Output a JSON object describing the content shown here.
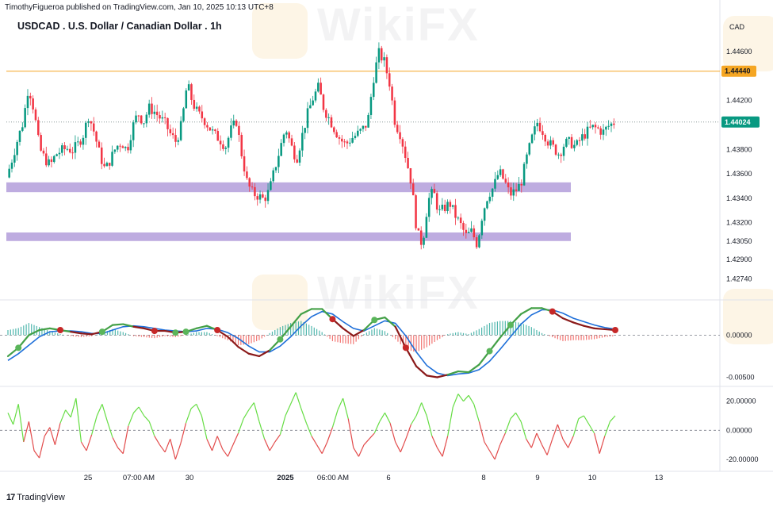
{
  "header": {
    "published": "TimothyFigueroa published on TradingView.com, Jan 10, 2025 10:13 UTC+8",
    "title": "USDCAD . U.S. Dollar / Canadian Dollar . 1h",
    "currency": "CAD"
  },
  "watermark": {
    "text": "WikiFX"
  },
  "footer": {
    "brand": "TradingView",
    "logo": "17"
  },
  "colors": {
    "up": "#089981",
    "down": "#f23645",
    "resistance": "#f5a623",
    "zone": "#b39ddb",
    "macd_line": "#43a047",
    "signal_line": "#1e6fd9",
    "macd_dark": "#8b1a1a",
    "osc_up": "#66dd44",
    "osc_down": "#e24b4b"
  },
  "chart_data": [
    {
      "type": "candlestick",
      "title": "USDCAD . U.S. Dollar / Canadian Dollar . 1h",
      "ylabel": "CAD",
      "price_axis_ticks": [
        "1.44600",
        "1.44200",
        "1.43800",
        "1.43600",
        "1.43400",
        "1.43200",
        "1.43050",
        "1.42900",
        "1.42740"
      ],
      "tick_values": [
        1.446,
        1.442,
        1.438,
        1.436,
        1.434,
        1.432,
        1.4305,
        1.429,
        1.4274
      ],
      "ylim": [
        1.4262,
        1.4475
      ],
      "price_path": [
        1.4357,
        1.4372,
        1.4388,
        1.4402,
        1.4432,
        1.4412,
        1.4381,
        1.4372,
        1.4367,
        1.4376,
        1.4379,
        1.4381,
        1.4379,
        1.4384,
        1.4392,
        1.4408,
        1.4394,
        1.4376,
        1.4363,
        1.4372,
        1.4382,
        1.4386,
        1.4379,
        1.4398,
        1.441,
        1.4402,
        1.4414,
        1.4411,
        1.4406,
        1.4401,
        1.4392,
        1.4386,
        1.4401,
        1.4434,
        1.4418,
        1.4409,
        1.4405,
        1.4398,
        1.4392,
        1.4388,
        1.4382,
        1.4396,
        1.4403,
        1.4375,
        1.4352,
        1.4344,
        1.4342,
        1.4339,
        1.4346,
        1.4364,
        1.4381,
        1.4398,
        1.4383,
        1.4372,
        1.4391,
        1.4409,
        1.4422,
        1.4431,
        1.4413,
        1.4405,
        1.4396,
        1.4388,
        1.4384,
        1.4389,
        1.4392,
        1.4396,
        1.4402,
        1.4437,
        1.4459,
        1.4452,
        1.4434,
        1.4402,
        1.4392,
        1.4373,
        1.4352,
        1.4312,
        1.4302,
        1.4338,
        1.4346,
        1.4328,
        1.4332,
        1.4336,
        1.4326,
        1.4318,
        1.4309,
        1.4313,
        1.4302,
        1.4328,
        1.4343,
        1.4349,
        1.4362,
        1.4354,
        1.4343,
        1.4346,
        1.4352,
        1.4372,
        1.4389,
        1.4402,
        1.4395,
        1.4386,
        1.4381,
        1.4376,
        1.4385,
        1.4386,
        1.4382,
        1.4389,
        1.4394,
        1.4398,
        1.4397,
        1.4394,
        1.4399,
        1.4402
      ],
      "resistance_level": 1.4444,
      "resistance_label": "1.44440",
      "last_price": 1.44024,
      "last_price_label": "1.44024",
      "support_zones": [
        {
          "low": 1.4345,
          "high": 1.4353
        },
        {
          "low": 1.4305,
          "high": 1.4312
        }
      ],
      "x_axis_labels": [
        "25",
        "07:00 AM",
        "30",
        "2025",
        "06:00 AM",
        "6",
        "8",
        "9",
        "10",
        "13"
      ]
    },
    {
      "type": "line",
      "name": "MACD",
      "tick_labels": [
        "0.00000",
        "-0.00500"
      ],
      "tick_values": [
        0,
        -0.005
      ],
      "ylim": [
        -0.0058,
        0.0038
      ],
      "zero_line": true,
      "macd_path": [
        -0.0025,
        -0.0015,
        0.0,
        0.0006,
        0.0008,
        0.0006,
        0.0004,
        0.0002,
        0.0001,
        0.0004,
        0.0012,
        0.0013,
        0.001,
        0.0008,
        0.0005,
        0.0005,
        0.0003,
        0.0004,
        0.0008,
        0.0011,
        0.0006,
        -0.0002,
        -0.0014,
        -0.0022,
        -0.0025,
        -0.0018,
        -0.0005,
        0.001,
        0.0025,
        0.0031,
        0.0031,
        0.0019,
        0.0008,
        -0.0001,
        0.0006,
        0.0018,
        0.0021,
        0.001,
        -0.0015,
        -0.0037,
        -0.0048,
        -0.005,
        -0.0047,
        -0.0043,
        -0.0044,
        -0.0035,
        -0.0019,
        -0.0003,
        0.0012,
        0.0025,
        0.0032,
        0.0032,
        0.0028,
        0.002,
        0.0015,
        0.0011,
        0.0008,
        0.0007,
        0.0006
      ],
      "signal_path": [
        -0.003,
        -0.0022,
        -0.0012,
        -0.0002,
        0.0004,
        0.0005,
        0.0005,
        0.0004,
        0.0002,
        0.0002,
        0.0006,
        0.001,
        0.0011,
        0.001,
        0.0008,
        0.0006,
        0.0005,
        0.0004,
        0.0005,
        0.0008,
        0.0007,
        0.0003,
        -0.0004,
        -0.0013,
        -0.002,
        -0.002,
        -0.0013,
        -0.0002,
        0.0011,
        0.0022,
        0.0028,
        0.0025,
        0.0016,
        0.0008,
        0.0005,
        0.0011,
        0.0017,
        0.0014,
        -0.0001,
        -0.002,
        -0.0036,
        -0.0045,
        -0.0048,
        -0.0046,
        -0.0045,
        -0.0041,
        -0.0031,
        -0.0017,
        -0.0002,
        0.0013,
        0.0024,
        0.003,
        0.003,
        0.0026,
        0.002,
        0.0016,
        0.0012,
        0.0009,
        0.0007
      ],
      "cross_indices": [
        1,
        5,
        9,
        14,
        16,
        17,
        20,
        26,
        31,
        35,
        38,
        46,
        48,
        52,
        58
      ]
    },
    {
      "type": "line",
      "name": "Oscillator",
      "tick_labels": [
        "20.00000",
        "0.00000",
        "-20.00000"
      ],
      "tick_values": [
        20,
        0,
        -20
      ],
      "ylim": [
        -26,
        28
      ],
      "zero_line": true,
      "values": [
        12,
        4,
        18,
        -8,
        6,
        -14,
        -19,
        -4,
        2,
        -10,
        5,
        14,
        9,
        22,
        -8,
        -14,
        -3,
        10,
        18,
        6,
        -5,
        -12,
        -16,
        3,
        12,
        16,
        10,
        6,
        -4,
        -10,
        -15,
        -6,
        -20,
        -9,
        5,
        15,
        18,
        10,
        -6,
        -14,
        -4,
        -13,
        -18,
        -10,
        -2,
        8,
        14,
        19,
        6,
        -6,
        -14,
        -8,
        -3,
        10,
        18,
        26,
        15,
        5,
        -4,
        -10,
        -16,
        -8,
        2,
        14,
        22,
        8,
        -12,
        -18,
        -10,
        -6,
        -2,
        6,
        12,
        5,
        -8,
        -15,
        -6,
        4,
        10,
        19,
        10,
        -4,
        -12,
        -18,
        -4,
        16,
        25,
        20,
        24,
        18,
        6,
        -8,
        -14,
        -20,
        -10,
        -2,
        8,
        12,
        6,
        -6,
        -12,
        -2,
        -10,
        -17,
        -6,
        4,
        -6,
        -12,
        -4,
        8,
        10,
        4,
        -2,
        -16,
        -4,
        6,
        10
      ]
    }
  ]
}
